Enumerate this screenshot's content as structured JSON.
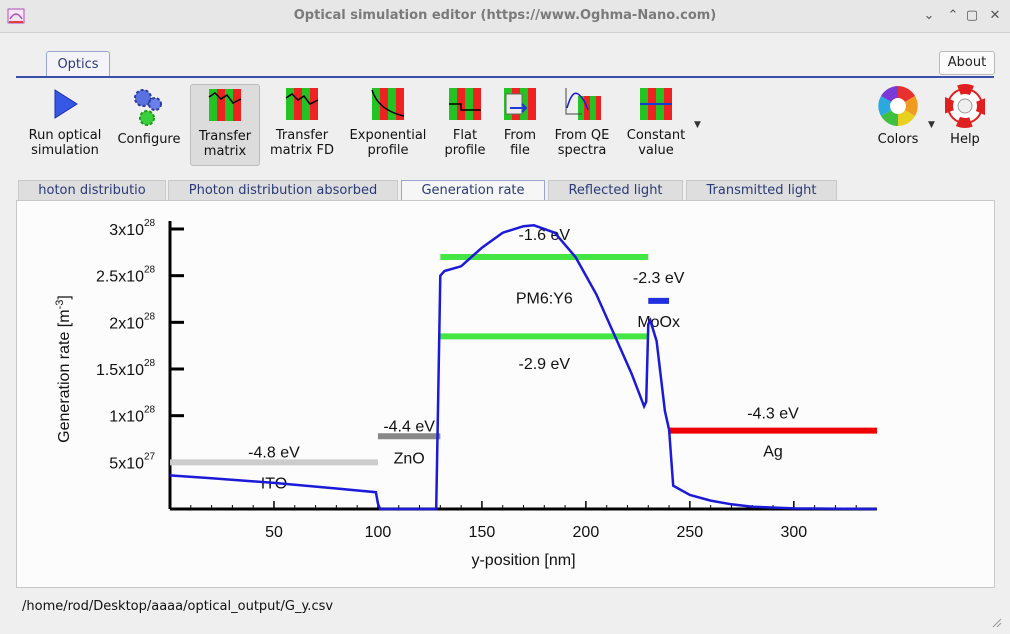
{
  "window": {
    "title": "Optical simulation editor (https://www.Oghma-Nano.com)",
    "controls": [
      "⌄",
      "⌃",
      "▢",
      "✕"
    ]
  },
  "ribbon": {
    "tab": "Optics",
    "about": "About",
    "tools": [
      {
        "name": "run",
        "l1": "Run optical",
        "l2": "simulation",
        "icon": "play-icon"
      },
      {
        "name": "configure",
        "l1": "Configure",
        "l2": "",
        "icon": "gears-icon"
      },
      {
        "name": "transfer-matrix",
        "l1": "Transfer",
        "l2": "matrix",
        "icon": "transfer-matrix-icon"
      },
      {
        "name": "transfer-matrix-fd",
        "l1": "Transfer",
        "l2": "matrix FD",
        "icon": "transfer-matrix-fd-icon"
      },
      {
        "name": "exponential",
        "l1": "Exponential",
        "l2": "profile",
        "icon": "exponential-profile-icon"
      },
      {
        "name": "flat",
        "l1": "Flat",
        "l2": "profile",
        "icon": "flat-profile-icon"
      },
      {
        "name": "from-file",
        "l1": "From",
        "l2": "file",
        "icon": "from-file-icon"
      },
      {
        "name": "from-qe",
        "l1": "From QE",
        "l2": "spectra",
        "icon": "qe-spectra-icon"
      },
      {
        "name": "constant",
        "l1": "Constant",
        "l2": "value",
        "icon": "constant-value-icon"
      },
      {
        "name": "colors",
        "l1": "Colors",
        "l2": "",
        "icon": "color-wheel-icon"
      },
      {
        "name": "help",
        "l1": "Help",
        "l2": "",
        "icon": "lifebuoy-icon"
      }
    ]
  },
  "subtabs": [
    {
      "label": "hoton distributio"
    },
    {
      "label": "Photon distribution absorbed"
    },
    {
      "label": "Generation rate"
    },
    {
      "label": "Reflected light"
    },
    {
      "label": "Transmitted light"
    }
  ],
  "status_path": "/home/rod/Desktop/aaaa/optical_output/G_y.csv",
  "chart_data": {
    "type": "line",
    "xlabel": "y-position [nm]",
    "ylabel_main": "Generation rate [m",
    "ylabel_sup": "-3",
    "ylabel_end": "]",
    "xlim": [
      0,
      340
    ],
    "ylim": [
      0,
      3e+28
    ],
    "xticks": [
      50,
      100,
      150,
      200,
      250,
      300
    ],
    "yticks": [
      {
        "v": 5e+27,
        "m": "5x10",
        "e": "27"
      },
      {
        "v": 1e+28,
        "m": "1x10",
        "e": "28"
      },
      {
        "v": 1.5e+28,
        "m": "1.5x10",
        "e": "28"
      },
      {
        "v": 2e+28,
        "m": "2x10",
        "e": "28"
      },
      {
        "v": 2.5e+28,
        "m": "2.5x10",
        "e": "28"
      },
      {
        "v": 3e+28,
        "m": "3x10",
        "e": "28"
      }
    ],
    "line_color": "#1a1ad8",
    "series": [
      {
        "points": [
          [
            0,
            3.6e+27
          ],
          [
            20,
            3.3e+27
          ],
          [
            50,
            2.8e+27
          ],
          [
            80,
            2.2e+27
          ],
          [
            99,
            1.8e+27
          ],
          [
            100,
            6e+26
          ],
          [
            101,
            0
          ],
          [
            127,
            0
          ],
          [
            128,
            0
          ],
          [
            129,
            1.2e+28
          ],
          [
            130,
            2.5e+28
          ],
          [
            132,
            2.55e+28
          ],
          [
            140,
            2.6e+28
          ],
          [
            150,
            2.8e+28
          ],
          [
            160,
            2.96e+28
          ],
          [
            170,
            3.03e+28
          ],
          [
            175,
            3.04e+28
          ],
          [
            185,
            2.96e+28
          ],
          [
            195,
            2.7e+28
          ],
          [
            205,
            2.3e+28
          ],
          [
            215,
            1.8e+28
          ],
          [
            222,
            1.45e+28
          ],
          [
            228,
            1.1e+28
          ],
          [
            229,
            1.15e+28
          ],
          [
            230,
            1.98e+28
          ],
          [
            231,
            2.02e+28
          ],
          [
            234,
            1.8e+28
          ],
          [
            238,
            1.05e+28
          ],
          [
            240,
            8.5e+27
          ],
          [
            242,
            2.5e+27
          ],
          [
            250,
            1.5e+27
          ],
          [
            260,
            9e+26
          ],
          [
            270,
            5e+26
          ],
          [
            280,
            2.5e+26
          ],
          [
            300,
            6e+25
          ],
          [
            340,
            0
          ]
        ]
      }
    ],
    "layers": [
      {
        "name": "ITO",
        "x0": 0,
        "x1": 100,
        "yline": 5e+27,
        "color": "#cccccc",
        "energy": "-4.8 eV",
        "ey": 5.5e+27,
        "ny": 2.2e+27
      },
      {
        "name": "ZnO",
        "x0": 100,
        "x1": 130,
        "yline": 7.8e+27,
        "color": "#888888",
        "energy": "-4.4 eV",
        "ey": 8.3e+27,
        "ny": 4.9e+27
      },
      {
        "name": "PM6:Y6",
        "x0": 130,
        "x1": 230,
        "color": "#44e644",
        "yline": 2.7e+28,
        "energy": "-1.6 eV",
        "ey": 2.88e+28,
        "yline2": 1.85e+28,
        "energy2": "-2.9 eV",
        "ey2": 1.5e+28,
        "ny": 2.2e+28
      },
      {
        "name": "MoOx",
        "x0": 230,
        "x1": 240,
        "yline": 2.23e+28,
        "color": "#2030e0",
        "energy": "-2.3 eV",
        "ey": 2.42e+28,
        "ny": 1.95e+28
      },
      {
        "name": "Ag",
        "x0": 240,
        "x1": 340,
        "yline": 8.4e+27,
        "color": "#ee0000",
        "energy": "-4.3 eV",
        "ey": 9.7e+27,
        "ny": 5.6e+27
      }
    ]
  }
}
